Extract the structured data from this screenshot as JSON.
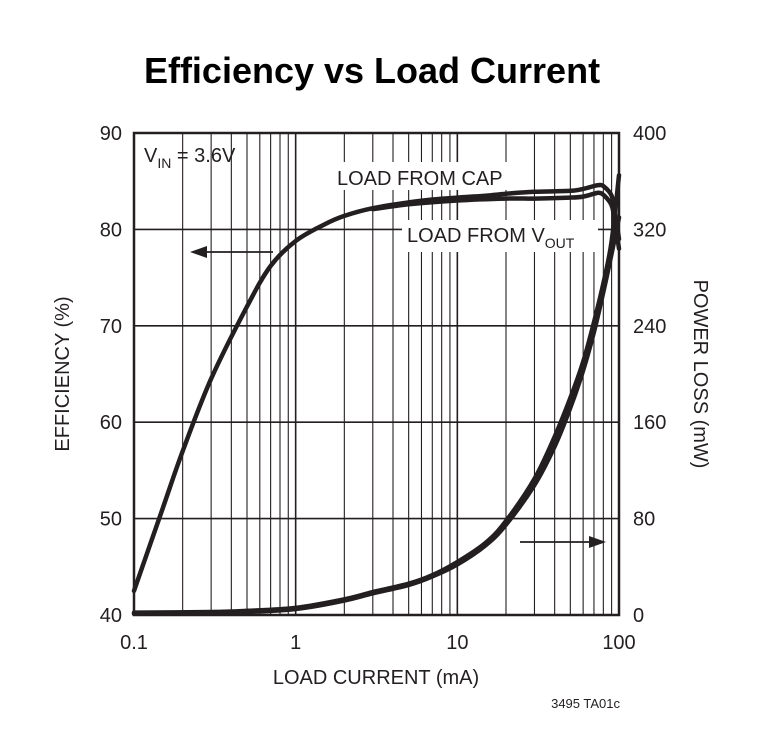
{
  "chart_data": {
    "type": "line",
    "title": "Efficiency vs Load Current",
    "xlabel": "LOAD CURRENT (mA)",
    "ylabel_left": "EFFICIENCY (%)",
    "ylabel_right": "POWER LOSS (mW)",
    "x_scale": "log",
    "xlim": [
      0.1,
      100
    ],
    "ylim_left": [
      40,
      90
    ],
    "ylim_right": [
      0,
      400
    ],
    "x_ticks": [
      0.1,
      1,
      10,
      100
    ],
    "x_tick_labels": [
      "0.1",
      "1",
      "10",
      "100"
    ],
    "y_left_ticks": [
      40,
      50,
      60,
      70,
      80,
      90
    ],
    "y_left_tick_labels": [
      "40",
      "50",
      "60",
      "70",
      "80",
      "90"
    ],
    "y_right_ticks": [
      0,
      80,
      160,
      240,
      320,
      400
    ],
    "y_right_tick_labels": [
      "0",
      "80",
      "160",
      "240",
      "320",
      "400"
    ],
    "grid": true,
    "condition_label": {
      "main": "V",
      "sub": "IN",
      "rest": " = 3.6V"
    },
    "annotations": {
      "load_from_cap": "LOAD FROM CAP",
      "load_from_vout_main": "LOAD FROM V",
      "load_from_vout_sub": "OUT"
    },
    "figure_code": "3495 TA01c",
    "series": [
      {
        "axis": "left",
        "x": [
          0.1,
          0.15,
          0.2,
          0.3,
          0.5,
          0.7,
          1,
          1.5,
          2,
          3,
          5,
          7,
          10,
          15,
          20,
          30,
          50,
          60,
          70,
          75,
          80,
          90,
          95,
          100
        ],
        "y": [
          42.5,
          51,
          57,
          64.5,
          72,
          76.2,
          78.8,
          80.5,
          81.4,
          82.2,
          82.8,
          83.1,
          83.3,
          83.5,
          83.7,
          83.9,
          84.0,
          84.2,
          84.5,
          84.6,
          84.5,
          83.5,
          81.5,
          79
        ]
      },
      {
        "axis": "left",
        "x": [
          3,
          5,
          10,
          20,
          30,
          50,
          60,
          70,
          75,
          80,
          90,
          95,
          100
        ],
        "y": [
          82.1,
          82.6,
          83.0,
          83.2,
          83.2,
          83.3,
          83.4,
          83.7,
          83.8,
          83.6,
          82.5,
          80.5,
          78
        ]
      },
      {
        "axis": "right",
        "x": [
          0.1,
          0.3,
          0.5,
          1,
          2,
          3,
          5,
          7,
          10,
          15,
          20,
          30,
          40,
          50,
          60,
          70,
          80,
          90,
          100
        ],
        "y": [
          2,
          2.5,
          3.5,
          6,
          13,
          19,
          26,
          33,
          44,
          60,
          78,
          113,
          148,
          180,
          210,
          243,
          275,
          310,
          365
        ]
      },
      {
        "axis": "right",
        "x": [
          0.1,
          0.3,
          0.5,
          1,
          2,
          3,
          5,
          7,
          10,
          15,
          20,
          30,
          40,
          50,
          60,
          70,
          80,
          90,
          100
        ],
        "y": [
          1,
          1.5,
          2.5,
          5,
          12,
          18,
          25,
          32,
          42,
          58,
          75,
          108,
          140,
          172,
          203,
          235,
          268,
          300,
          330
        ]
      }
    ]
  }
}
